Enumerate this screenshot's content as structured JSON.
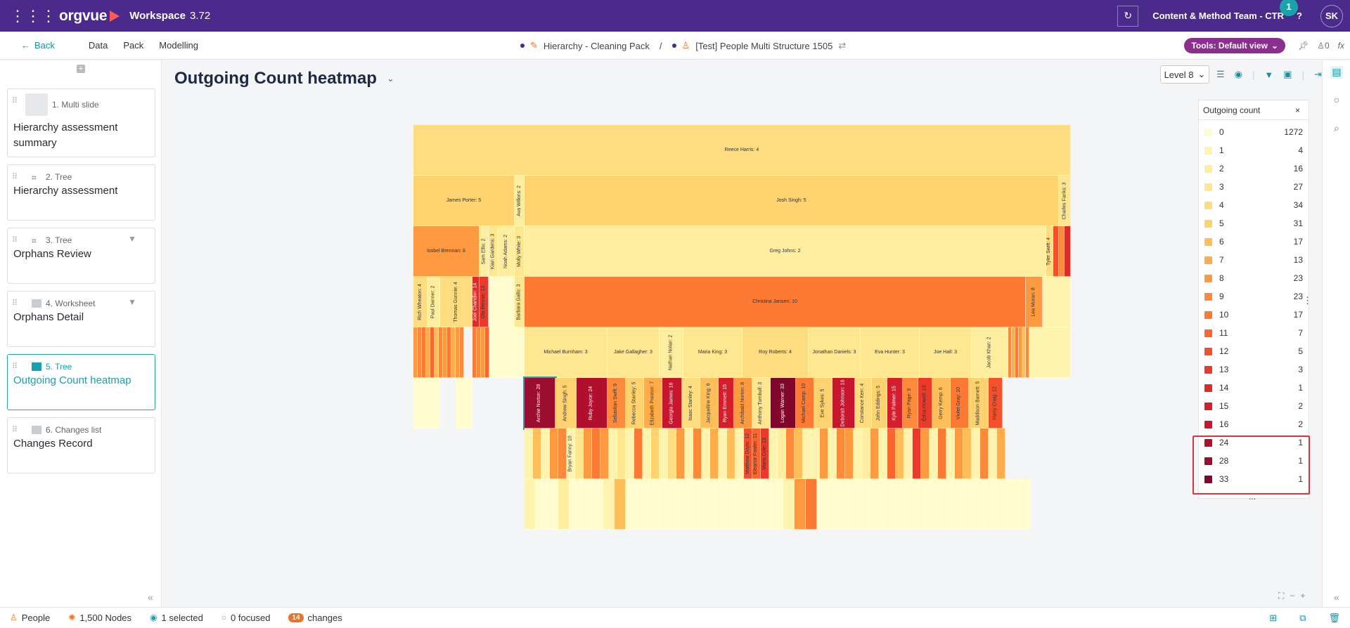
{
  "topbar": {
    "app_name": "orgvue",
    "workspace_label": "Workspace",
    "version": "3.72",
    "team": "Content & Method Team - CTR",
    "notifications": "1",
    "help": "?",
    "avatar_initials": "SK"
  },
  "subbar": {
    "back_label": "Back",
    "menu": [
      "Data",
      "Pack",
      "Modelling"
    ],
    "crumb_pack": "Hierarchy - Cleaning Pack",
    "crumb_sep": "/",
    "crumb_dataset": "[Test] People Multi Structure 1505",
    "tools_label": "Tools: Default view",
    "user_count": "0",
    "fx_label": "fx"
  },
  "slides": [
    {
      "head": "1. Multi slide",
      "title": "Hierarchy assessment summary",
      "icon": "multi-slide-icon"
    },
    {
      "head": "2. Tree",
      "title": "Hierarchy assessment",
      "icon": "tree-icon"
    },
    {
      "head": "3. Tree",
      "title": "Orphans Review",
      "icon": "tree-icon",
      "filtered": true
    },
    {
      "head": "4. Worksheet",
      "title": "Orphans Detail",
      "icon": "worksheet-icon",
      "filtered": true
    },
    {
      "head": "5. Tree",
      "title": "Outgoing Count heatmap",
      "icon": "heatmap-icon",
      "active": true
    },
    {
      "head": "6. Changes list",
      "title": "Changes Record",
      "icon": "changes-list-icon"
    }
  ],
  "canvas": {
    "title": "Outgoing Count heatmap",
    "level": "Level 8"
  },
  "legend": {
    "title": "Outgoing count",
    "more": "...",
    "rows": [
      {
        "value": "0",
        "count": "1272",
        "color": "#fffdd0"
      },
      {
        "value": "1",
        "count": "4",
        "color": "#fff3b0"
      },
      {
        "value": "2",
        "count": "16",
        "color": "#ffeea0"
      },
      {
        "value": "3",
        "count": "27",
        "color": "#ffe690"
      },
      {
        "value": "4",
        "count": "34",
        "color": "#fedd80"
      },
      {
        "value": "5",
        "count": "31",
        "color": "#fed26e"
      },
      {
        "value": "6",
        "count": "17",
        "color": "#febf5a"
      },
      {
        "value": "7",
        "count": "13",
        "color": "#fead4a"
      },
      {
        "value": "8",
        "count": "23",
        "color": "#fd9a40"
      },
      {
        "value": "9",
        "count": "23",
        "color": "#fd8a3a"
      },
      {
        "value": "10",
        "count": "17",
        "color": "#fc7a34"
      },
      {
        "value": "11",
        "count": "7",
        "color": "#fb6530"
      },
      {
        "value": "12",
        "count": "5",
        "color": "#f4502c"
      },
      {
        "value": "13",
        "count": "3",
        "color": "#ec3a2a"
      },
      {
        "value": "14",
        "count": "1",
        "color": "#e02a2a"
      },
      {
        "value": "15",
        "count": "2",
        "color": "#d41e2c"
      },
      {
        "value": "16",
        "count": "2",
        "color": "#c8162e"
      },
      {
        "value": "24",
        "count": "1",
        "color": "#b0102e"
      },
      {
        "value": "28",
        "count": "1",
        "color": "#9c0c2e"
      },
      {
        "value": "33",
        "count": "1",
        "color": "#80062c"
      }
    ]
  },
  "heatmap_labels": {
    "l1": [
      "Reece Harris: 4"
    ],
    "l2": [
      "James Porter: 5",
      "Ava Wilkins: 2",
      "Josh Singh: 5",
      "Charles Fanks: 3"
    ],
    "l3": [
      "Isobel Brennan: 8",
      "Sam Ellis: 2",
      "Kian Gardens: 3",
      "Noah Adams: 2",
      "Molly White: 3",
      "Greg Johns: 2",
      "Tyler Swift: 4"
    ],
    "l4": [
      "Rich Wheaton: 4",
      "Paul Danner: 2",
      "Thomas Gunnie: 4",
      "Joel Chandler: 14",
      "Ola Bennie: 13",
      "Barbara Gallo: 3",
      "Christina Jansen: 10",
      "Lea Moran: 8"
    ],
    "l5": [
      "Michael Burnham: 3",
      "Jake Gallagher: 3",
      "Nathan Nolan: 2",
      "Maria King: 3",
      "Roy Roberts: 4",
      "Jonathan Daniels: 3",
      "Eva Hunter: 3",
      "Joe Hall: 3",
      "Jacob Khan: 2"
    ],
    "l6": [
      "Archie Norton: 28",
      "Andrew Singh: 5",
      "Ruby Joyce: 24",
      "Sebastian Swift: 9",
      "Rebecca Stanley: 5",
      "Elizabeth Preston: 7",
      "Georgia James: 16",
      "Isaac Stanley: 4",
      "Jacqueline King: 6",
      "Ryan Emmett: 15",
      "Archibald Norton: 8",
      "Anthony Turnbull: 3",
      "Logan Warner: 33",
      "Michael Camp: 10",
      "Eve Sykes: 5",
      "Deborah Johnson: 16",
      "Constance Kerr: 4",
      "John Eddings: 5",
      "Kyle Palmer: 15",
      "Ryan Page: 9",
      "Edna Howell: 13",
      "Gerry Kemp: 6",
      "Violet Gray: 10",
      "Maddison Barnett: 5",
      "Harry Craig: 12"
    ],
    "l7": [
      "Bryan Fanny: 10",
      "Matthew Doyle: 12",
      "Eleanor Fowler: 11",
      "Maria Cole: 13"
    ]
  },
  "status": {
    "people": "People",
    "nodes": "1,500 Nodes",
    "selected": "1 selected",
    "focused": "0 focused",
    "changes_count": "14",
    "changes": "changes"
  }
}
